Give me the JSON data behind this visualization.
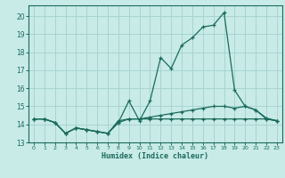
{
  "xlabel": "Humidex (Indice chaleur)",
  "bg_color": "#c8ebe8",
  "grid_color": "#a8d4d0",
  "line_color": "#1a6b5a",
  "x": [
    0,
    1,
    2,
    3,
    4,
    5,
    6,
    7,
    8,
    9,
    10,
    11,
    12,
    13,
    14,
    15,
    16,
    17,
    18,
    19,
    20,
    21,
    22,
    23
  ],
  "line1": [
    14.3,
    14.3,
    14.1,
    13.5,
    13.8,
    13.7,
    13.6,
    13.5,
    14.1,
    15.3,
    14.2,
    15.3,
    17.7,
    17.1,
    18.4,
    18.8,
    19.4,
    19.5,
    20.2,
    15.9,
    15.0,
    14.8,
    14.3,
    14.2
  ],
  "line2": [
    14.3,
    14.3,
    14.1,
    13.5,
    13.8,
    13.7,
    13.6,
    13.5,
    14.2,
    14.3,
    14.3,
    14.4,
    14.5,
    14.6,
    14.7,
    14.8,
    14.9,
    15.0,
    15.0,
    14.9,
    15.0,
    14.8,
    14.35,
    14.2
  ],
  "line3": [
    14.3,
    14.3,
    14.1,
    13.5,
    13.8,
    13.7,
    13.6,
    13.5,
    14.1,
    14.3,
    14.3,
    14.3,
    14.3,
    14.3,
    14.3,
    14.3,
    14.3,
    14.3,
    14.3,
    14.3,
    14.3,
    14.3,
    14.3,
    14.2
  ],
  "ylim": [
    13.0,
    20.6
  ],
  "xlim": [
    -0.5,
    23.5
  ],
  "yticks": [
    13,
    14,
    15,
    16,
    17,
    18,
    19,
    20
  ],
  "xticks": [
    0,
    1,
    2,
    3,
    4,
    5,
    6,
    7,
    8,
    9,
    10,
    11,
    12,
    13,
    14,
    15,
    16,
    17,
    18,
    19,
    20,
    21,
    22,
    23
  ]
}
